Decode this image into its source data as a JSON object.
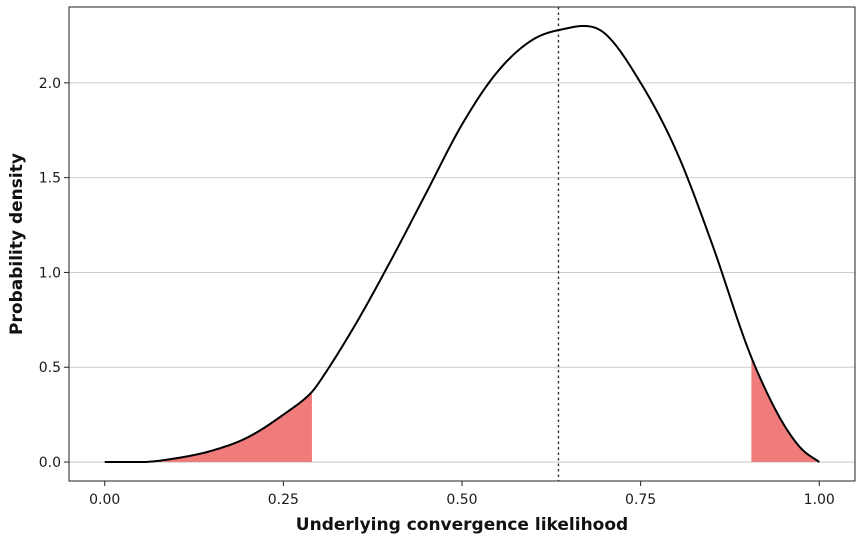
{
  "chart_data": {
    "type": "area",
    "xlabel": "Underlying convergence likelihood",
    "ylabel": "Probability density",
    "xlim": [
      -0.05,
      1.05
    ],
    "ylim": [
      -0.1,
      2.4
    ],
    "x_ticks": [
      0.0,
      0.25,
      0.5,
      0.75,
      1.0
    ],
    "x_tick_labels": [
      "0.00",
      "0.25",
      "0.50",
      "0.75",
      "1.00"
    ],
    "y_ticks": [
      0.0,
      0.5,
      1.0,
      1.5,
      2.0
    ],
    "y_tick_labels": [
      "0.0",
      "0.5",
      "1.0",
      "1.5",
      "2.0"
    ],
    "grid": "horizontal",
    "legend": "none",
    "series": [
      {
        "x": [
          0.0,
          0.05,
          0.1,
          0.15,
          0.2,
          0.25,
          0.29,
          0.3,
          0.35,
          0.4,
          0.45,
          0.5,
          0.55,
          0.6,
          0.65,
          0.67,
          0.7,
          0.75,
          0.8,
          0.85,
          0.9,
          0.925,
          0.95,
          0.975,
          1.0
        ],
        "y": [
          0.0,
          0.0,
          0.02,
          0.06,
          0.13,
          0.25,
          0.37,
          0.42,
          0.72,
          1.06,
          1.42,
          1.78,
          2.06,
          2.23,
          2.29,
          2.3,
          2.26,
          2.0,
          1.64,
          1.15,
          0.6,
          0.38,
          0.2,
          0.07,
          0.0
        ]
      }
    ],
    "shaded_regions": [
      {
        "x_start": 0.07,
        "x_end": 0.29
      },
      {
        "x_start": 0.905,
        "x_end": 1.0
      }
    ],
    "reference_line": {
      "x": 0.635,
      "style": "dotted"
    },
    "colors": {
      "curve": "#000000",
      "shade": "#f07b7b",
      "grid": "#cccccc",
      "reference": "#333333"
    }
  }
}
